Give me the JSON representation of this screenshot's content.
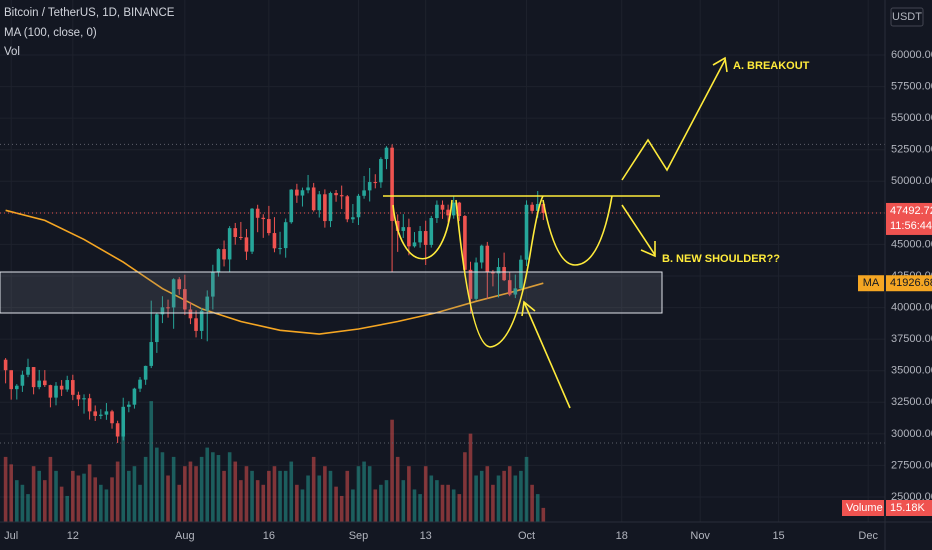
{
  "chart_data": {
    "type": "candlestick",
    "title": "Bitcoin / TetherUS, 1D, BINANCE",
    "currency": "USDT",
    "countdown": "11:56:44",
    "up_color": "#26a69a",
    "down_color": "#ef5350",
    "grid": true,
    "annotations": [
      "A. BREAKOUT",
      "B. NEW SHOULDER??"
    ],
    "xlim": [
      "Jun 29",
      "Dec 4"
    ],
    "xticks": [
      {
        "value": "Jul 1",
        "label": "Jul"
      },
      {
        "value": "Jul 12",
        "label": "12"
      },
      {
        "value": "Aug 1",
        "label": "Aug"
      },
      {
        "value": "Aug 16",
        "label": "16"
      },
      {
        "value": "Sep 1",
        "label": "Sep"
      },
      {
        "value": "Sep 13",
        "label": "13"
      },
      {
        "value": "Oct 1",
        "label": "Oct"
      },
      {
        "value": "Oct 18",
        "label": "18"
      },
      {
        "value": "Nov 1",
        "label": "Nov"
      },
      {
        "value": "Nov 15",
        "label": "15"
      },
      {
        "value": "Dec 1",
        "label": "Dec"
      }
    ],
    "ylim": [
      23020,
      64355
    ],
    "yticks": [
      {
        "value": 60000,
        "label": "60000.00"
      },
      {
        "value": 57500,
        "label": "57500.00"
      },
      {
        "value": 55000,
        "label": "55000.00"
      },
      {
        "value": 52500,
        "label": "52500.00"
      },
      {
        "value": 50000,
        "label": "50000.00"
      },
      {
        "value": 47500,
        "label": "47500.00"
      },
      {
        "value": 45000,
        "label": "45000.00"
      },
      {
        "value": 42500,
        "label": "42500.00"
      },
      {
        "value": 40000,
        "label": "40000.00"
      },
      {
        "value": 37500,
        "label": "37500.00"
      },
      {
        "value": 35000,
        "label": "35000.00"
      },
      {
        "value": 32500,
        "label": "32500.00"
      },
      {
        "value": 30000,
        "label": "30000.00"
      },
      {
        "value": 27500,
        "label": "27500.00"
      },
      {
        "value": 25000,
        "label": "25000.00"
      }
    ],
    "x": [
      "Jun 30",
      "Jul 1",
      "Jul 2",
      "Jul 3",
      "Jul 4",
      "Jul 5",
      "Jul 6",
      "Jul 7",
      "Jul 8",
      "Jul 9",
      "Jul 10",
      "Jul 11",
      "Jul 12",
      "Jul 13",
      "Jul 14",
      "Jul 15",
      "Jul 16",
      "Jul 17",
      "Jul 18",
      "Jul 19",
      "Jul 20",
      "Jul 21",
      "Jul 22",
      "Jul 23",
      "Jul 24",
      "Jul 25",
      "Jul 26",
      "Jul 27",
      "Jul 28",
      "Jul 29",
      "Jul 30",
      "Jul 31",
      "Aug 1",
      "Aug 2",
      "Aug 3",
      "Aug 4",
      "Aug 5",
      "Aug 6",
      "Aug 7",
      "Aug 8",
      "Aug 9",
      "Aug 10",
      "Aug 11",
      "Aug 12",
      "Aug 13",
      "Aug 14",
      "Aug 15",
      "Aug 16",
      "Aug 17",
      "Aug 18",
      "Aug 19",
      "Aug 20",
      "Aug 21",
      "Aug 22",
      "Aug 23",
      "Aug 24",
      "Aug 25",
      "Aug 26",
      "Aug 27",
      "Aug 28",
      "Aug 29",
      "Aug 30",
      "Aug 31",
      "Sep 1",
      "Sep 2",
      "Sep 3",
      "Sep 4",
      "Sep 5",
      "Sep 6",
      "Sep 7",
      "Sep 8",
      "Sep 9",
      "Sep 10",
      "Sep 11",
      "Sep 12",
      "Sep 13",
      "Sep 14",
      "Sep 15",
      "Sep 16",
      "Sep 17",
      "Sep 18",
      "Sep 19",
      "Sep 20",
      "Sep 21",
      "Sep 22",
      "Sep 23",
      "Sep 24",
      "Sep 25",
      "Sep 26",
      "Sep 27",
      "Sep 28",
      "Sep 29",
      "Sep 30",
      "Oct 1",
      "Oct 2",
      "Oct 3",
      "Oct 4"
    ],
    "open": [
      35870,
      35040,
      33540,
      33810,
      34680,
      35290,
      33700,
      34220,
      33860,
      32870,
      33810,
      33510,
      34260,
      33090,
      32730,
      32820,
      31780,
      31420,
      31520,
      31780,
      30840,
      29790,
      32140,
      32310,
      33580,
      34290,
      35380,
      37270,
      39460,
      40020,
      40010,
      42240,
      41460,
      39850,
      39150,
      38150,
      39750,
      40870,
      42820,
      44630,
      43810,
      46290,
      45590,
      45560,
      44430,
      47830,
      47110,
      47010,
      45900,
      44690,
      44710,
      46760,
      49340,
      48870,
      49290,
      49510,
      47710,
      48970,
      46850,
      49070,
      48900,
      48810,
      46990,
      47150,
      48850,
      49280,
      49940,
      49920,
      51760,
      52660,
      46860,
      46070,
      46370,
      44850,
      45160,
      46060,
      44960,
      47090,
      48140,
      47750,
      47300,
      48310,
      47250,
      42990,
      40690,
      43570,
      44900,
      42830,
      42700,
      43210,
      42170,
      41030,
      41520,
      43790,
      48140,
      47660,
      48200
    ],
    "high": [
      36000,
      35040,
      33940,
      35000,
      35950,
      35290,
      35060,
      35050,
      33890,
      34100,
      34260,
      34600,
      34680,
      33340,
      33130,
      33170,
      32250,
      31950,
      32440,
      31900,
      31040,
      32860,
      32580,
      33650,
      34500,
      35400,
      40550,
      39540,
      40900,
      40630,
      42320,
      42410,
      42600,
      40450,
      39780,
      39970,
      41360,
      43390,
      44700,
      45310,
      46450,
      46700,
      46780,
      46220,
      47880,
      48140,
      47390,
      48050,
      47160,
      46000,
      47050,
      49380,
      49800,
      49500,
      50500,
      49870,
      49230,
      49360,
      49180,
      49310,
      49660,
      48910,
      48200,
      49000,
      50420,
      51050,
      50560,
      51900,
      52780,
      52920,
      47380,
      47400,
      47040,
      45980,
      46460,
      46880,
      47260,
      48480,
      48480,
      48150,
      48800,
      48370,
      47330,
      43630,
      43960,
      44980,
      45200,
      42980,
      43920,
      44350,
      42790,
      42610,
      44130,
      48490,
      48340,
      49230,
      48500
    ],
    "low": [
      34000,
      32710,
      32720,
      33320,
      34490,
      33130,
      33530,
      33710,
      32100,
      32260,
      33000,
      33330,
      32670,
      32200,
      31600,
      31130,
      31020,
      31170,
      31110,
      30410,
      29280,
      29480,
      31710,
      32000,
      33310,
      33880,
      35210,
      36410,
      38770,
      39200,
      38320,
      41010,
      39420,
      38690,
      37640,
      37510,
      37330,
      39850,
      42450,
      43260,
      42850,
      44980,
      45350,
      43770,
      44240,
      45970,
      45520,
      45710,
      44380,
      44210,
      43950,
      46640,
      48290,
      48000,
      49050,
      47600,
      47130,
      46330,
      46370,
      48380,
      47800,
      46760,
      46700,
      46540,
      48620,
      48400,
      49440,
      49480,
      50960,
      42840,
      44410,
      45510,
      44140,
      44750,
      44740,
      43370,
      44750,
      46700,
      47020,
      46760,
      47040,
      46850,
      42500,
      39600,
      40570,
      43090,
      40680,
      41680,
      40800,
      42100,
      40900,
      40750,
      41410,
      43290,
      47440,
      47120,
      46930
    ],
    "close": [
      35040,
      33540,
      33810,
      34680,
      35290,
      33700,
      34220,
      33860,
      32870,
      33810,
      33510,
      34260,
      33090,
      32730,
      32820,
      31780,
      31420,
      31520,
      31780,
      30840,
      29790,
      32140,
      32310,
      33580,
      34290,
      35380,
      37270,
      39460,
      40020,
      40010,
      42240,
      41460,
      39850,
      39150,
      38150,
      39750,
      40870,
      42820,
      44630,
      43810,
      46290,
      45590,
      45560,
      44430,
      47830,
      47110,
      47010,
      45900,
      44690,
      44710,
      46760,
      49340,
      48870,
      49290,
      49510,
      47710,
      48970,
      46850,
      49070,
      48900,
      48810,
      46990,
      47150,
      48850,
      49280,
      49940,
      49920,
      51760,
      52660,
      46860,
      46070,
      46370,
      44850,
      45160,
      46060,
      44960,
      47090,
      48140,
      47750,
      47300,
      48310,
      47250,
      42990,
      40690,
      43570,
      44900,
      42830,
      42700,
      43210,
      42170,
      41030,
      41520,
      43790,
      48140,
      47660,
      48200,
      47492.72
    ],
    "ma": {
      "name": "MA (100, close, 0)",
      "label": "MA",
      "color": "#f5a623",
      "x": [
        "Jun 30",
        "Jul 7",
        "Jul 14",
        "Jul 21",
        "Jul 28",
        "Aug 4",
        "Aug 11",
        "Aug 18",
        "Aug 25",
        "Sep 1",
        "Sep 8",
        "Sep 15",
        "Sep 22",
        "Sep 29",
        "Oct 4"
      ],
      "values": [
        47700,
        46900,
        45400,
        43600,
        41500,
        39900,
        38900,
        38200,
        37900,
        38300,
        38900,
        39600,
        40500,
        41300,
        41926.68
      ]
    },
    "volume": {
      "name": "Vol",
      "label": "Volume",
      "last_value_label": "15.18K",
      "values": [
        70,
        62,
        45,
        40,
        30,
        60,
        55,
        45,
        70,
        55,
        38,
        28,
        55,
        50,
        52,
        62,
        48,
        40,
        35,
        48,
        65,
        95,
        55,
        60,
        40,
        70,
        130,
        80,
        75,
        50,
        70,
        40,
        60,
        65,
        60,
        70,
        80,
        75,
        72,
        55,
        75,
        65,
        45,
        60,
        55,
        45,
        40,
        55,
        60,
        55,
        55,
        65,
        40,
        35,
        50,
        70,
        50,
        60,
        55,
        38,
        28,
        55,
        35,
        60,
        65,
        60,
        35,
        40,
        45,
        110,
        70,
        45,
        60,
        35,
        30,
        60,
        50,
        45,
        40,
        40,
        35,
        30,
        75,
        95,
        50,
        55,
        60,
        40,
        50,
        55,
        60,
        50,
        55,
        70,
        40,
        30,
        15.18
      ]
    }
  }
}
